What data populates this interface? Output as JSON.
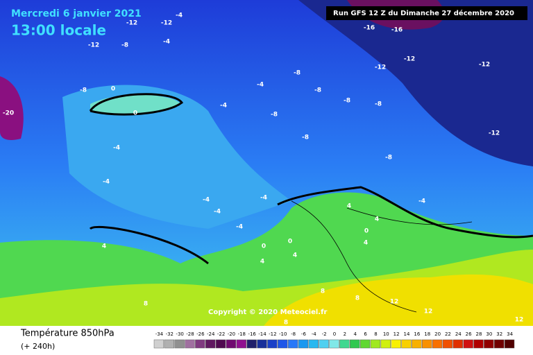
{
  "header": {
    "date": "Mercredi 6 janvier 2021",
    "time": "13:00 locale",
    "run": "Run GFS 12 Z du Dimanche 27 décembre 2020"
  },
  "map": {
    "contour_labels": [
      -12,
      -12,
      -12,
      -12,
      -12,
      -12,
      -12,
      -16,
      -16,
      -20,
      -8,
      -8,
      -8,
      -8,
      -8,
      -8,
      -8,
      -8,
      -8,
      -4,
      -4,
      -4,
      -4,
      -4,
      -4,
      -4,
      -4,
      -4,
      -4,
      -4,
      0,
      0,
      0,
      0,
      0,
      4,
      4,
      4,
      4,
      4,
      4,
      8,
      8,
      8,
      8,
      12,
      12,
      12
    ]
  },
  "copyright": "Copyright © 2020 Meteociel.fr",
  "legend": {
    "title": "Température 850hPa",
    "subtitle": "(+ 240h)",
    "ticks": [
      -34,
      -32,
      -30,
      -28,
      -26,
      -24,
      -22,
      -20,
      -18,
      -16,
      -14,
      -12,
      -10,
      -8,
      -6,
      -4,
      -2,
      0,
      2,
      4,
      6,
      8,
      10,
      12,
      14,
      16,
      18,
      20,
      22,
      24,
      26,
      28,
      30,
      32,
      34
    ],
    "colors": [
      "#d0d0d0",
      "#b0b0b0",
      "#909090",
      "#a070a0",
      "#803a80",
      "#601860",
      "#500a50",
      "#700a70",
      "#901090",
      "#20206a",
      "#18309a",
      "#1a40c8",
      "#1e56e8",
      "#2878f8",
      "#1a98f0",
      "#28b8f0",
      "#50d0f0",
      "#80e8e8",
      "#40d890",
      "#30c850",
      "#60d830",
      "#a0e820",
      "#d0f010",
      "#f8f000",
      "#f8d000",
      "#f8b000",
      "#f89000",
      "#f87000",
      "#f05000",
      "#e03000",
      "#d01010",
      "#b00000",
      "#900000",
      "#700000",
      "#500000"
    ]
  }
}
